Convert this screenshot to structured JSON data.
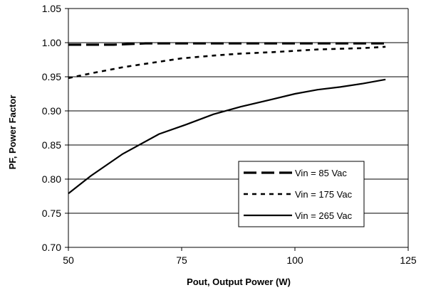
{
  "chart_data": {
    "type": "line",
    "title": "",
    "xlabel": "Pout, Output Power (W)",
    "ylabel": "PF, Power Factor",
    "xlim": [
      50,
      125
    ],
    "ylim": [
      0.7,
      1.05
    ],
    "xticks": [
      50,
      75,
      100,
      125
    ],
    "xtick_labels": [
      "50",
      "75",
      "100",
      "125"
    ],
    "yticks": [
      0.7,
      0.75,
      0.8,
      0.85,
      0.9,
      0.95,
      1.0,
      1.05
    ],
    "ytick_labels": [
      "0.70",
      "0.75",
      "0.80",
      "0.85",
      "0.90",
      "0.95",
      "1.00",
      "1.05"
    ],
    "grid": "horizontal",
    "legend_position": "bottom-right",
    "series": [
      {
        "name": "Vin = 85 Vac",
        "style": "long-dash",
        "x": [
          50,
          60,
          67,
          75,
          90,
          105,
          120
        ],
        "y": [
          0.997,
          0.997,
          0.999,
          0.999,
          0.999,
          0.999,
          0.999
        ]
      },
      {
        "name": "Vin = 175 Vac",
        "style": "short-dash",
        "x": [
          50,
          55,
          62,
          68,
          75,
          82,
          88,
          95,
          100,
          105,
          110,
          115,
          120
        ],
        "y": [
          0.948,
          0.955,
          0.964,
          0.97,
          0.977,
          0.981,
          0.984,
          0.986,
          0.988,
          0.99,
          0.991,
          0.992,
          0.994
        ]
      },
      {
        "name": "Vin = 265 Vac",
        "style": "solid",
        "x": [
          50,
          55,
          62,
          70,
          76,
          82,
          88,
          95,
          100,
          105,
          110,
          115,
          120
        ],
        "y": [
          0.779,
          0.805,
          0.837,
          0.866,
          0.88,
          0.895,
          0.906,
          0.917,
          0.925,
          0.931,
          0.935,
          0.94,
          0.946
        ]
      }
    ]
  }
}
